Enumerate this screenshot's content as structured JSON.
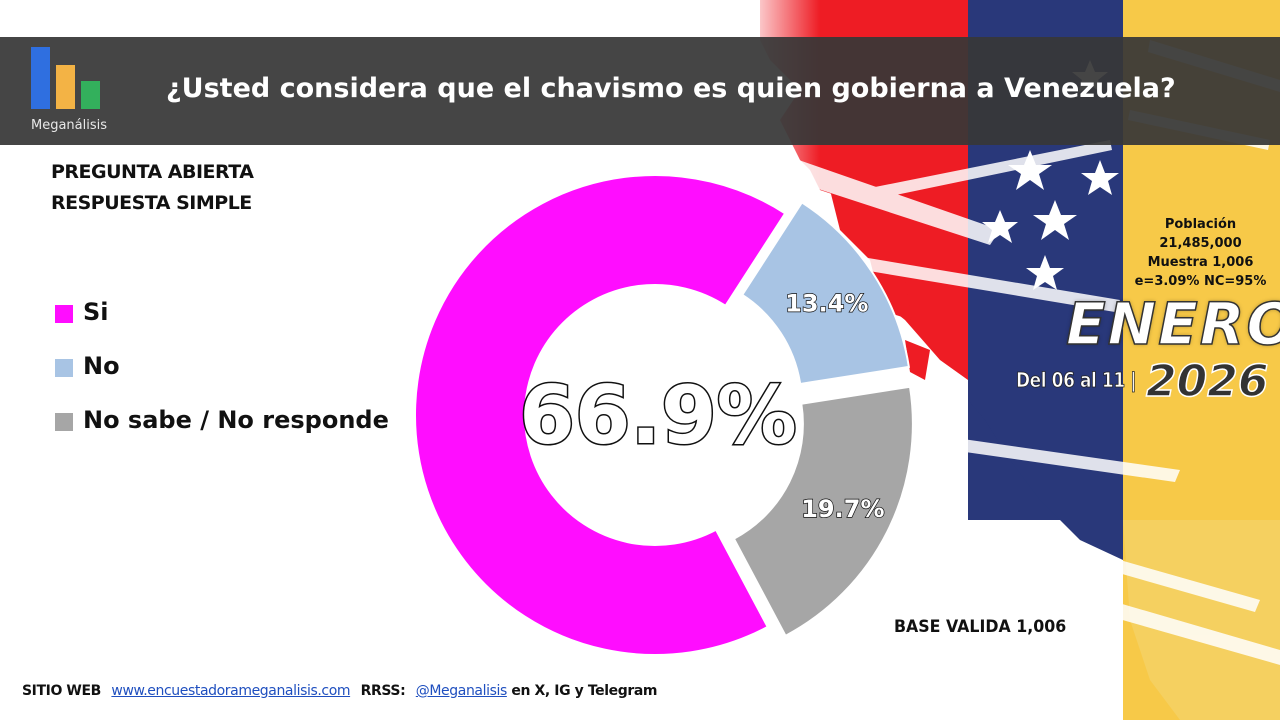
{
  "header": {
    "logo_text": "Meganálisis",
    "title": "¿Usted considera que el chavismo es quien gobierna a Venezuela?"
  },
  "question_type": {
    "line1": "PREGUNTA  ABIERTA",
    "line2": "RESPUESTA SIMPLE"
  },
  "colors": {
    "si": "#ff0dff",
    "no": "#a8c4e4",
    "ns": "#a6a6a6",
    "header_bg": "#373737"
  },
  "chart_data": {
    "type": "pie",
    "variant": "donut",
    "categories": [
      "Si",
      "No",
      "No sabe / No responde"
    ],
    "values": [
      66.9,
      13.4,
      19.7
    ],
    "labels": [
      "66.9%",
      "13.4%",
      "19.7%"
    ],
    "legend_position": "left"
  },
  "survey": {
    "poblacion_label": "Población",
    "poblacion_value": "21,485,000",
    "muestra": "Muestra 1,006",
    "error": "e=3.09%  NC=95%"
  },
  "period": {
    "month": "ENERO",
    "dates": "Del 06 al 11 |",
    "year": "2026"
  },
  "base": "BASE VALIDA 1,006",
  "footer": {
    "site_label": "SITIO WEB",
    "site_url": "www.encuestadorameganalisis.com",
    "rrss_label": "RRSS:",
    "handle": "@Meganalisis",
    "networks": "en X, IG y Telegram"
  }
}
